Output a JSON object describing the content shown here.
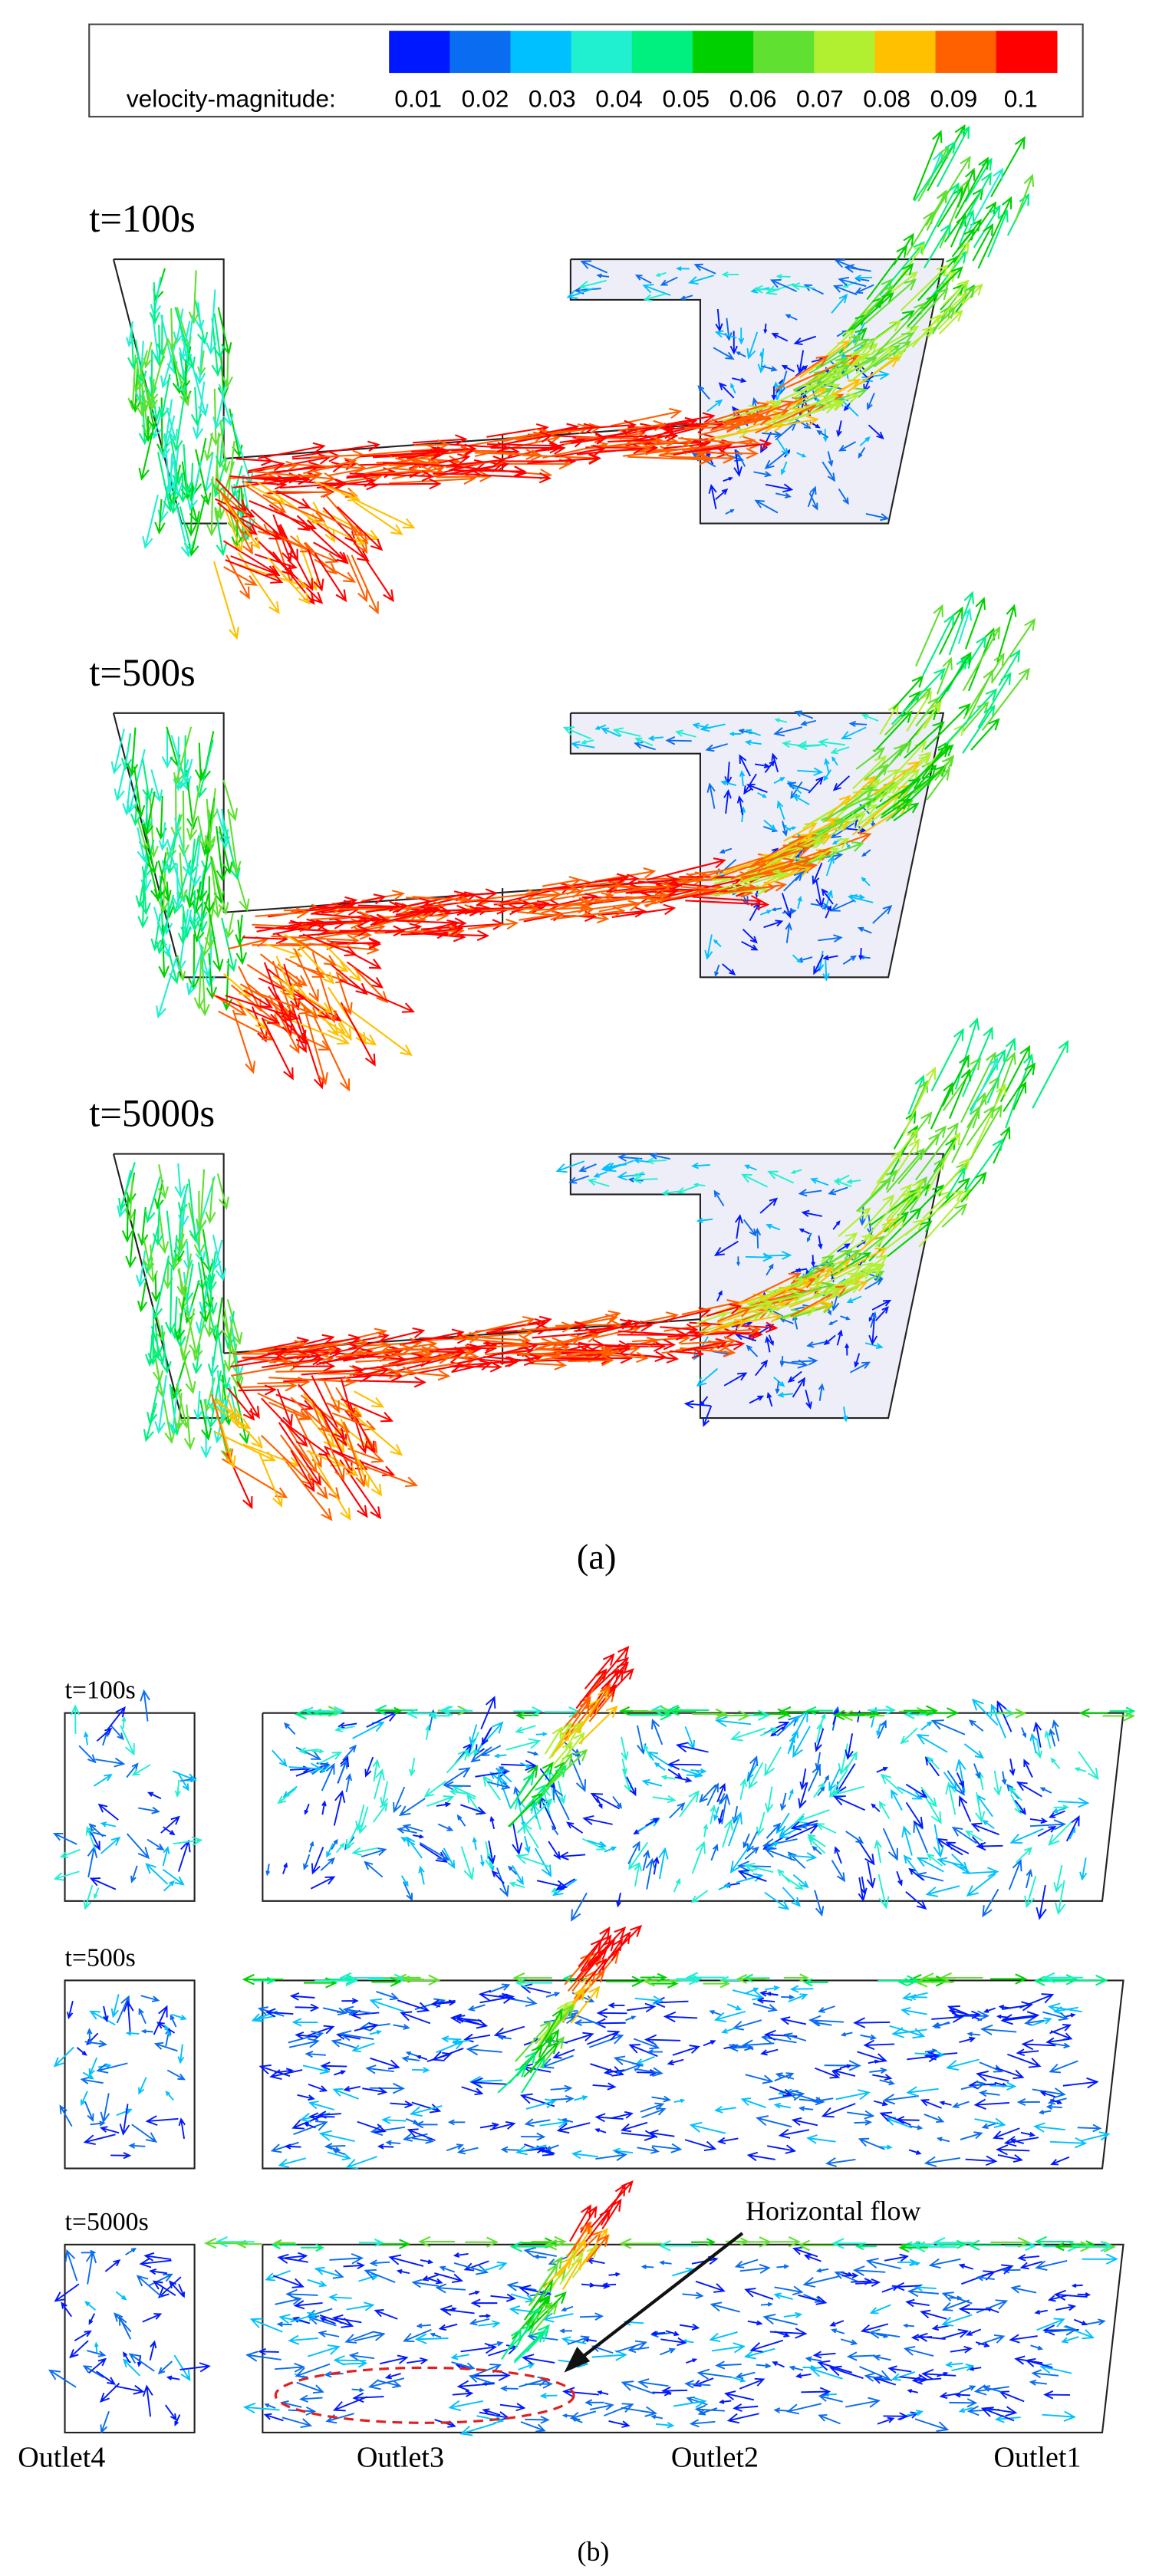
{
  "legend": {
    "label": "velocity-magnitude:",
    "ticks": [
      0.01,
      0.02,
      0.03,
      0.04,
      0.05,
      0.06,
      0.07,
      0.08,
      0.09,
      0.1
    ],
    "colors": [
      "#0018ff",
      "#0a6cf0",
      "#00c0ff",
      "#20f0d0",
      "#00f080",
      "#00d000",
      "#60e030",
      "#b0f030",
      "#ffc000",
      "#ff6000",
      "#ff0000"
    ]
  },
  "panel_a": {
    "time_labels": [
      "t=100s",
      "t=500s",
      "t=5000s"
    ],
    "caption": "(a)"
  },
  "panel_b": {
    "time_labels": [
      "t=100s",
      "t=500s",
      "t=5000s"
    ],
    "outlets": [
      "Outlet4",
      "Outlet3",
      "Outlet2",
      "Outlet1"
    ],
    "annotation": "Horizontal flow",
    "caption": "(b)"
  }
}
